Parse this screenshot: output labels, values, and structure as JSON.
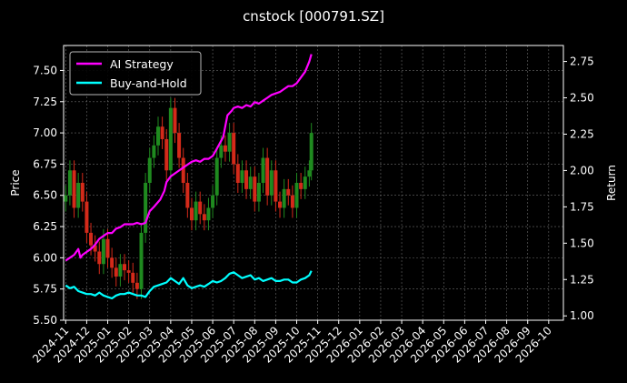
{
  "chart_data": {
    "type": "line",
    "title": "cnstock [000791.SZ]",
    "ylabel_left": "Price",
    "ylabel_right": "Return",
    "xlabel": "",
    "grid": true,
    "legend_position": "top-left",
    "ylim_left": [
      5.5,
      7.7
    ],
    "ylim_right": [
      0.97,
      2.86
    ],
    "yticks_left": [
      "5.50",
      "5.75",
      "6.00",
      "6.25",
      "6.50",
      "6.75",
      "7.00",
      "7.25",
      "7.50"
    ],
    "yticks_right": [
      "1.00",
      "1.25",
      "1.50",
      "1.75",
      "2.00",
      "2.25",
      "2.50",
      "2.75"
    ],
    "xticks": [
      "2024-11",
      "2024-12",
      "2025-01",
      "2025-02",
      "2025-03",
      "2025-04",
      "2025-05",
      "2025-06",
      "2025-07",
      "2025-08",
      "2025-09",
      "2025-10",
      "2025-11",
      "2025-12",
      "2026-01",
      "2026-02",
      "2026-03",
      "2026-04",
      "2026-05",
      "2026-06",
      "2026-07",
      "2026-08",
      "2026-09",
      "2026-10"
    ],
    "x_range_months": [
      -0.1,
      23.7
    ],
    "series": [
      {
        "name": "AI Strategy",
        "axis": "right",
        "color": "#ff00ff",
        "x_months": [
          0.0,
          0.2,
          0.4,
          0.6,
          0.7,
          0.8,
          0.9,
          1.0,
          1.2,
          1.4,
          1.6,
          1.8,
          2.0,
          2.2,
          2.4,
          2.6,
          2.8,
          3.0,
          3.2,
          3.4,
          3.6,
          3.8,
          4.0,
          4.2,
          4.5,
          4.7,
          4.8,
          5.0,
          5.2,
          5.4,
          5.6,
          5.8,
          6.0,
          6.2,
          6.4,
          6.6,
          6.8,
          7.0,
          7.2,
          7.5,
          7.7,
          7.9,
          8.0,
          8.2,
          8.4,
          8.6,
          8.8,
          9.0,
          9.2,
          9.4,
          9.6,
          9.8,
          10.0,
          10.2,
          10.4,
          10.6,
          10.8,
          11.0,
          11.2,
          11.4,
          11.6,
          11.7
        ],
        "values": [
          1.38,
          1.4,
          1.42,
          1.46,
          1.4,
          1.42,
          1.43,
          1.44,
          1.46,
          1.49,
          1.53,
          1.55,
          1.57,
          1.57,
          1.6,
          1.61,
          1.63,
          1.63,
          1.63,
          1.64,
          1.63,
          1.64,
          1.72,
          1.75,
          1.8,
          1.86,
          1.92,
          1.96,
          1.98,
          2.0,
          2.02,
          2.04,
          2.06,
          2.07,
          2.06,
          2.08,
          2.08,
          2.1,
          2.15,
          2.23,
          2.38,
          2.41,
          2.43,
          2.44,
          2.43,
          2.45,
          2.44,
          2.47,
          2.46,
          2.48,
          2.5,
          2.52,
          2.53,
          2.54,
          2.56,
          2.58,
          2.58,
          2.6,
          2.64,
          2.68,
          2.75,
          2.8
        ]
      },
      {
        "name": "Buy-and-Hold",
        "axis": "right",
        "color": "#00ffff",
        "x_months": [
          0.0,
          0.2,
          0.4,
          0.6,
          0.8,
          1.0,
          1.2,
          1.4,
          1.6,
          1.8,
          2.0,
          2.2,
          2.4,
          2.6,
          2.8,
          3.0,
          3.2,
          3.4,
          3.6,
          3.8,
          4.0,
          4.2,
          4.4,
          4.6,
          4.8,
          5.0,
          5.2,
          5.4,
          5.6,
          5.8,
          6.0,
          6.2,
          6.4,
          6.6,
          6.8,
          7.0,
          7.2,
          7.4,
          7.6,
          7.8,
          8.0,
          8.2,
          8.4,
          8.6,
          8.8,
          9.0,
          9.2,
          9.4,
          9.6,
          9.8,
          10.0,
          10.2,
          10.4,
          10.6,
          10.8,
          11.0,
          11.2,
          11.4,
          11.6,
          11.7
        ],
        "values": [
          1.21,
          1.19,
          1.2,
          1.17,
          1.16,
          1.15,
          1.15,
          1.14,
          1.16,
          1.14,
          1.13,
          1.12,
          1.14,
          1.15,
          1.15,
          1.16,
          1.15,
          1.14,
          1.14,
          1.13,
          1.17,
          1.2,
          1.21,
          1.22,
          1.23,
          1.26,
          1.24,
          1.22,
          1.26,
          1.21,
          1.19,
          1.2,
          1.21,
          1.2,
          1.22,
          1.24,
          1.23,
          1.24,
          1.26,
          1.29,
          1.3,
          1.28,
          1.26,
          1.27,
          1.28,
          1.25,
          1.26,
          1.24,
          1.25,
          1.26,
          1.24,
          1.24,
          1.25,
          1.25,
          1.23,
          1.23,
          1.25,
          1.26,
          1.28,
          1.31
        ]
      },
      {
        "name": "",
        "axis": "left",
        "type": "candles",
        "x_months": [
          0.0,
          0.2,
          0.4,
          0.6,
          0.8,
          1.0,
          1.2,
          1.4,
          1.6,
          1.8,
          2.0,
          2.2,
          2.4,
          2.6,
          2.8,
          3.0,
          3.2,
          3.4,
          3.6,
          3.8,
          4.0,
          4.2,
          4.4,
          4.6,
          4.8,
          5.0,
          5.2,
          5.4,
          5.6,
          5.8,
          6.0,
          6.2,
          6.4,
          6.6,
          6.8,
          7.0,
          7.2,
          7.4,
          7.6,
          7.8,
          8.0,
          8.2,
          8.4,
          8.6,
          8.8,
          9.0,
          9.2,
          9.4,
          9.6,
          9.8,
          10.0,
          10.2,
          10.4,
          10.6,
          10.8,
          11.0,
          11.2,
          11.4,
          11.6,
          11.7
        ],
        "close": [
          6.5,
          6.7,
          6.4,
          6.6,
          6.45,
          6.2,
          6.1,
          6.05,
          5.95,
          6.15,
          6.0,
          5.92,
          5.85,
          5.95,
          5.9,
          5.88,
          5.8,
          5.75,
          6.2,
          6.6,
          6.8,
          6.9,
          7.05,
          6.95,
          6.7,
          7.2,
          7.0,
          6.8,
          6.6,
          6.4,
          6.3,
          6.45,
          6.35,
          6.3,
          6.4,
          6.5,
          6.8,
          6.9,
          6.85,
          7.0,
          6.75,
          6.6,
          6.7,
          6.55,
          6.65,
          6.45,
          6.6,
          6.8,
          6.5,
          6.7,
          6.45,
          6.4,
          6.55,
          6.5,
          6.4,
          6.6,
          6.55,
          6.65,
          6.7,
          7.0
        ],
        "up_color": "#1f8a1f",
        "down_color": "#d42a1a"
      }
    ]
  }
}
